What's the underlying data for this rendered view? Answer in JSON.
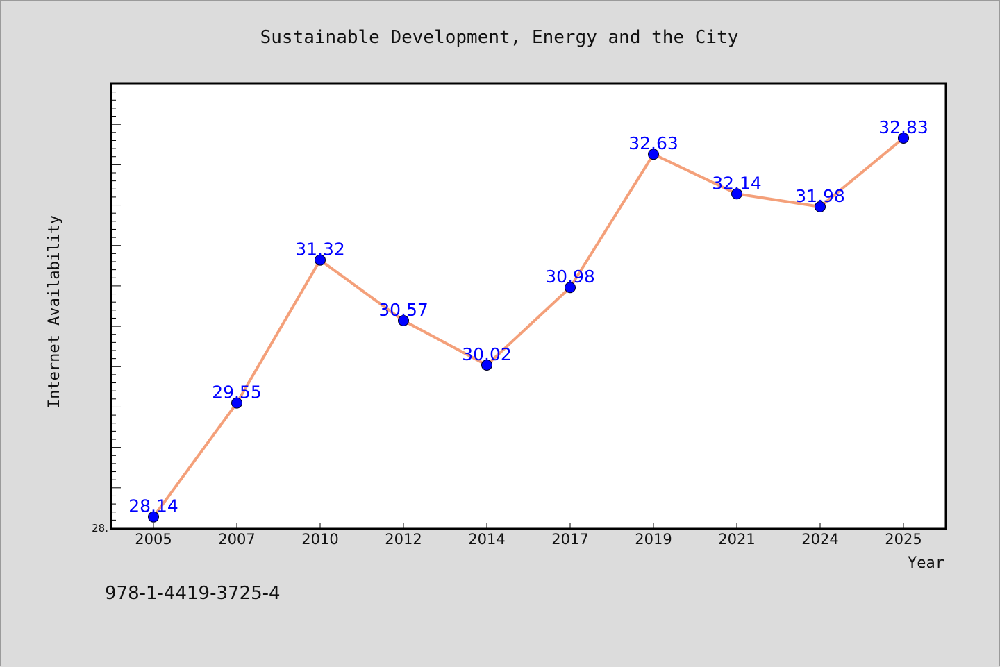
{
  "colors": {
    "background": "#dcdcdc",
    "plot_background": "#ffffff",
    "line": "#f4a07a",
    "marker": "#0000ff",
    "data_label": "#0000ff"
  },
  "footer_text": "978-1-4419-3725-4",
  "chart_data": {
    "type": "line",
    "title": "Sustainable Development, Energy and the City",
    "xlabel": "Year",
    "ylabel": "Internet Availability",
    "categories": [
      "2005",
      "2007",
      "2010",
      "2012",
      "2014",
      "2017",
      "2019",
      "2021",
      "2024",
      "2025"
    ],
    "series": [
      {
        "values": [
          28.14,
          29.55,
          31.32,
          30.57,
          30.02,
          30.98,
          32.63,
          32.14,
          31.98,
          32.83
        ]
      }
    ],
    "data_labels": [
      "28.14",
      "29.55",
      "31.32",
      "30.57",
      "30.02",
      "30.98",
      "32.63",
      "32.14",
      "31.98",
      "32.83"
    ],
    "ylim": [
      28.0,
      33.5
    ],
    "y_tick_labels": [
      "28."
    ],
    "grid": false,
    "legend": "none"
  }
}
